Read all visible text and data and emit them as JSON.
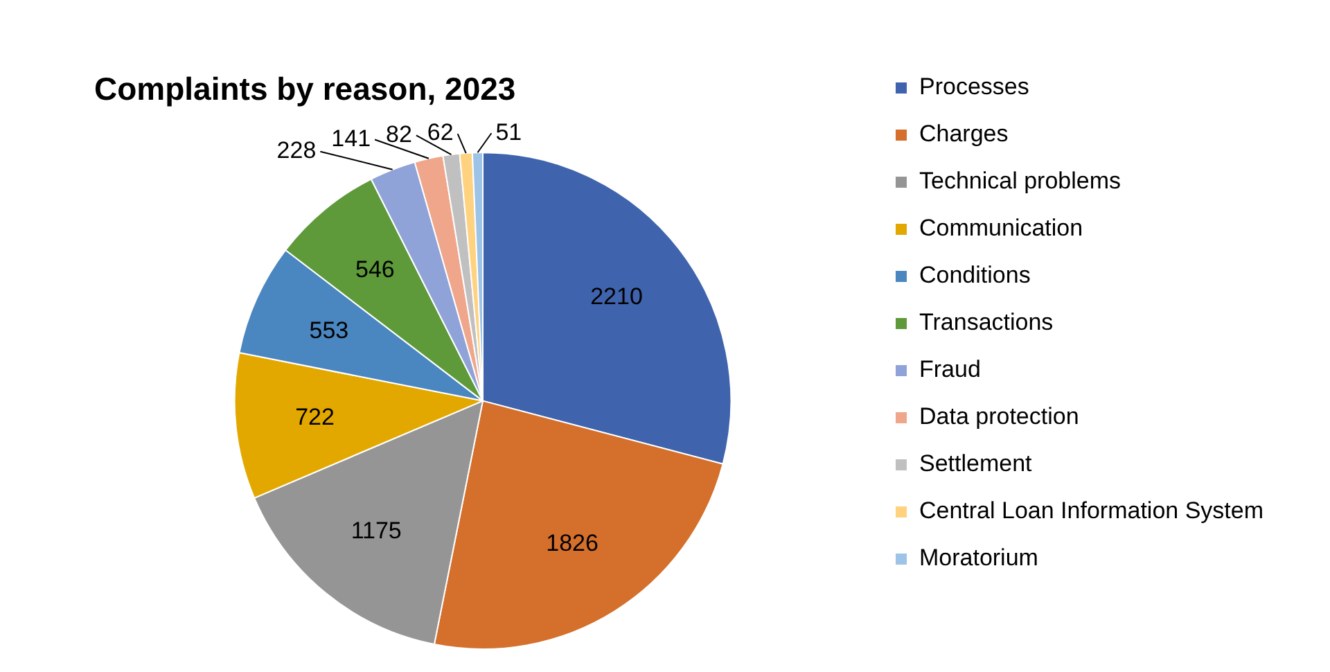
{
  "chart_data": {
    "type": "pie",
    "title": "Complaints by reason, 2023",
    "categories": [
      "Processes",
      "Charges",
      "Technical problems",
      "Communication",
      "Conditions",
      "Transactions",
      "Fraud",
      "Data protection",
      "Settlement",
      "Central Loan Information System",
      "Moratorium"
    ],
    "values": [
      2210,
      1826,
      1175,
      722,
      553,
      546,
      228,
      141,
      82,
      62,
      51
    ],
    "colors": [
      "#3f64ad",
      "#d46f2c",
      "#959595",
      "#e3a800",
      "#4a86c0",
      "#5e9a3a",
      "#8fa3d9",
      "#f0a68a",
      "#c0c0c0",
      "#ffd27f",
      "#9dc3e6"
    ],
    "data_labels": true,
    "legend": "right"
  }
}
